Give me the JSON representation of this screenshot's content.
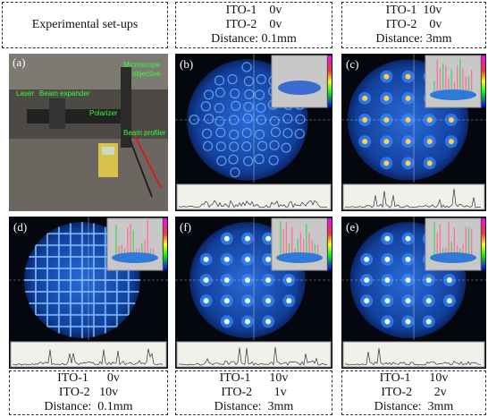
{
  "header": {
    "captions": [
      [
        "Experimental set-ups"
      ],
      [
        "ITO-1    0v",
        "ITO-2    0v",
        "Distance: 0.1mm"
      ],
      [
        "ITO-1  10v",
        "ITO-2    0v",
        "Distance: 3mm"
      ]
    ]
  },
  "panels": [
    {
      "label": "(a)",
      "annotations": [
        "Microscope",
        "objective",
        "Laser",
        "Beam expander",
        "Polarizer",
        "Beam profiler"
      ]
    },
    {
      "label": "(b)"
    },
    {
      "label": "(c)"
    },
    {
      "label": "(d)"
    },
    {
      "label": "(f)"
    },
    {
      "label": "(e)"
    }
  ],
  "footer": {
    "captions": [
      [
        "ITO-1      0v",
        "ITO-2   10v",
        "Distance:  0.1mm"
      ],
      [
        "ITO-1      10v",
        "ITO-2       1v",
        "Distance:  3mm"
      ],
      [
        "ITO-1      10v",
        "ITO-2       2v",
        "Distance:  3mm"
      ]
    ]
  }
}
